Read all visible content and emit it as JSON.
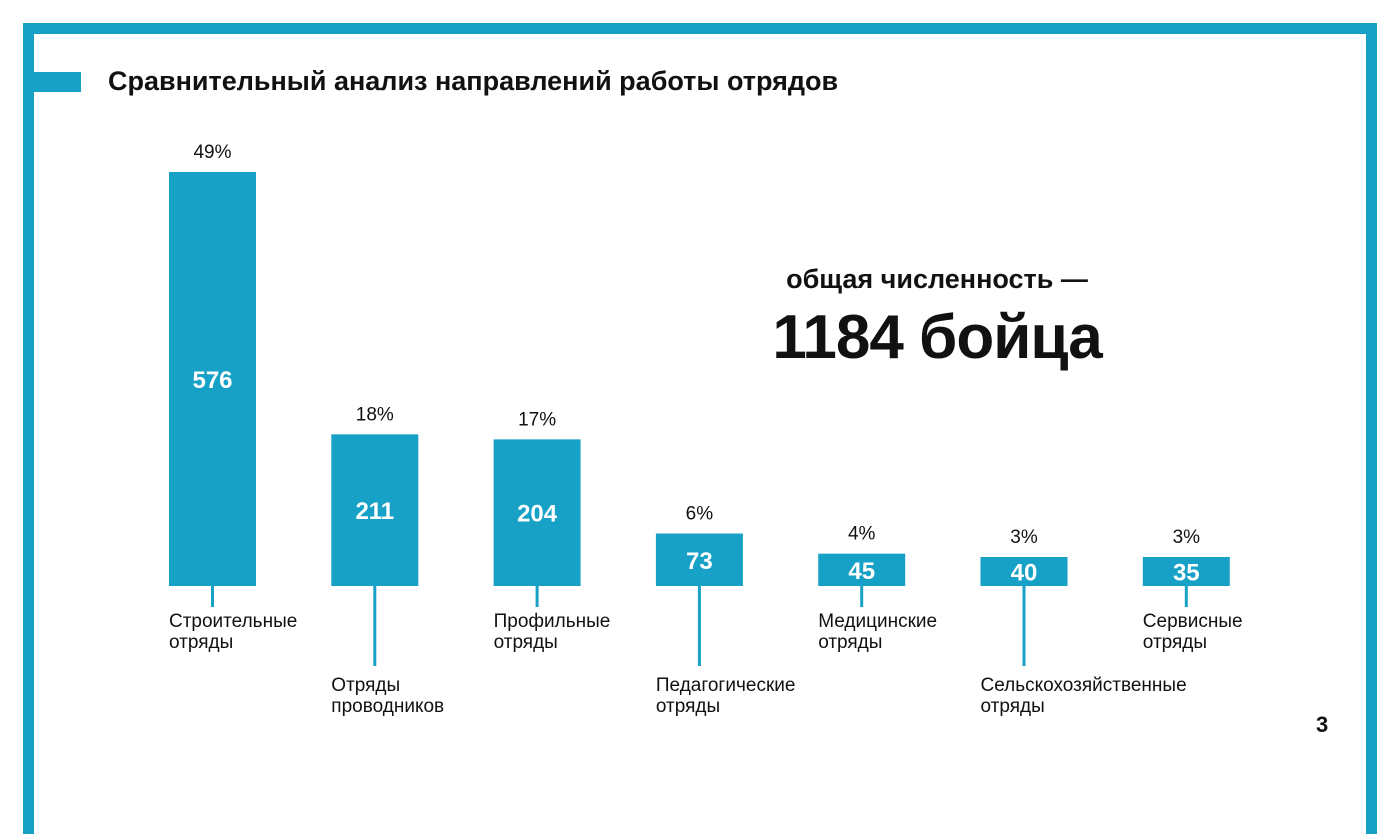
{
  "title": "Сравнительный анализ направлений работы отрядов",
  "total": {
    "line1": "общая численность —",
    "line2": "1184 бойца"
  },
  "page_number": "3",
  "colors": {
    "accent": "#17a1c6"
  },
  "chart_data": {
    "type": "bar",
    "title": "Сравнительный анализ направлений работы отрядов",
    "categories": [
      [
        "Строительные",
        "отряды"
      ],
      [
        "Отряды",
        "проводников"
      ],
      [
        "Профильные",
        "отряды"
      ],
      [
        "Педагогические",
        "отряды"
      ],
      [
        "Медицинские",
        "отряды"
      ],
      [
        "Сельскохозяйственные",
        "отряды"
      ],
      [
        "Сервисные",
        "отряды"
      ]
    ],
    "values": [
      576,
      211,
      204,
      73,
      45,
      40,
      35
    ],
    "value_labels": [
      "576",
      "211",
      "204",
      "73",
      "45",
      "40",
      "35"
    ],
    "percent_labels": [
      "49%",
      "18%",
      "17%",
      "6%",
      "4%",
      "3%",
      "3%"
    ],
    "xlabel": "",
    "ylabel": "",
    "ylim": [
      0,
      576
    ],
    "grid": false
  }
}
